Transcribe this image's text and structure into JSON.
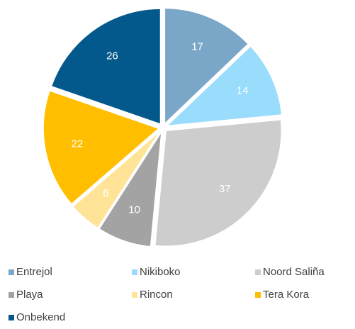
{
  "chart_data": {
    "type": "pie",
    "categories": [
      "Entrejol",
      "Nikiboko",
      "Noord Saliña",
      "Playa",
      "Rincon",
      "Tera Kora",
      "Onbekend"
    ],
    "values": [
      17,
      14,
      37,
      10,
      6,
      22,
      26
    ],
    "colors": [
      "#7aa6c8",
      "#99dcfb",
      "#cdcdcd",
      "#a3a3a3",
      "#ffe497",
      "#ffbf00",
      "#03588c"
    ],
    "legend": "bottom"
  }
}
